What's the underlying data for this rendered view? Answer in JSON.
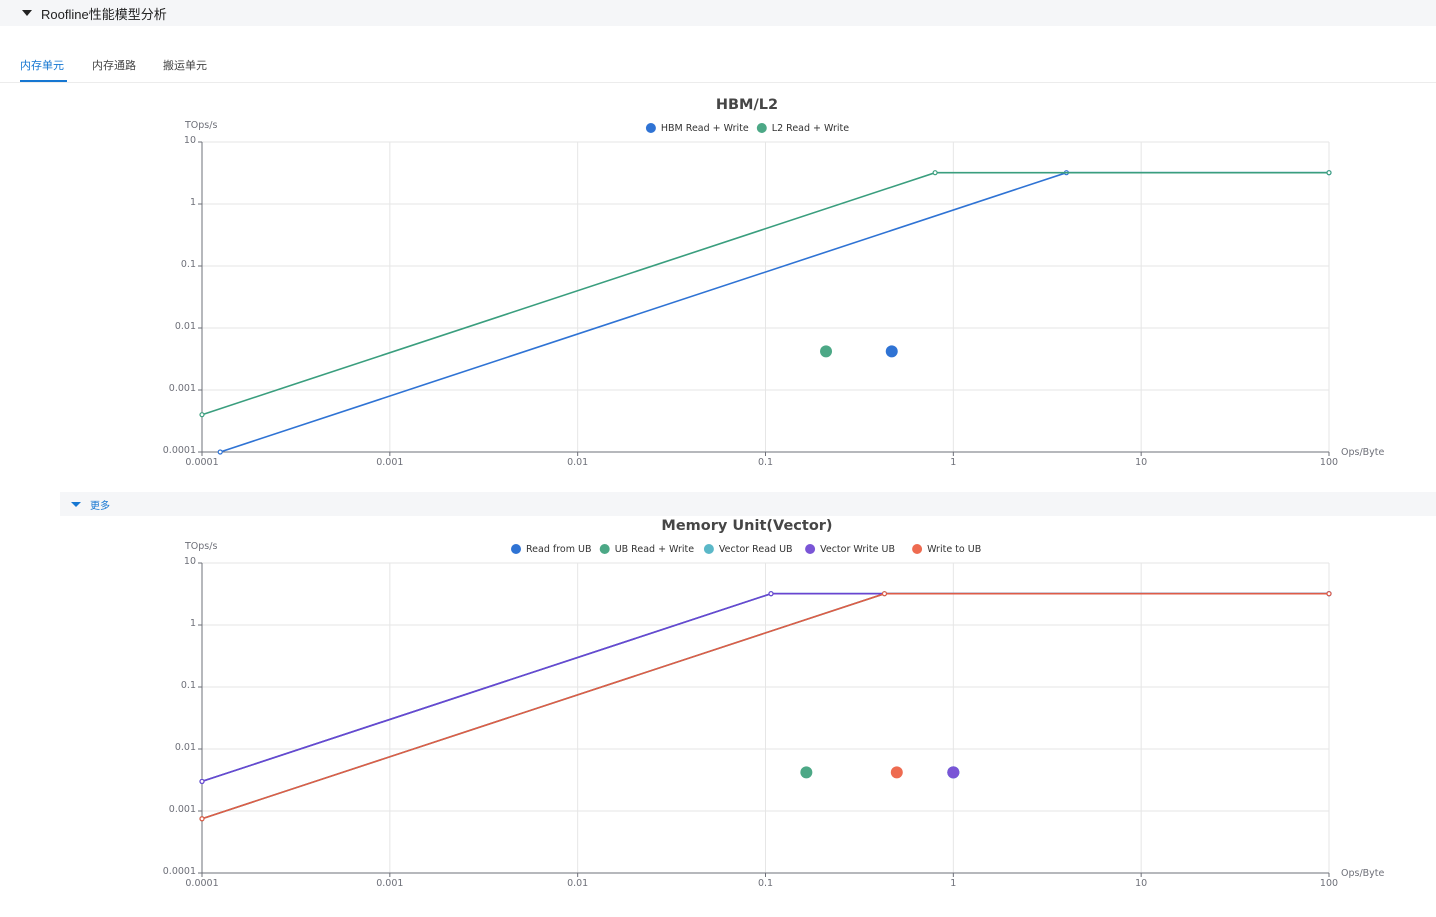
{
  "section": {
    "title": "Roofline性能模型分析"
  },
  "tabs": [
    {
      "label": "内存单元",
      "active": true
    },
    {
      "label": "内存通路",
      "active": false
    },
    {
      "label": "搬运单元",
      "active": false
    }
  ],
  "more": {
    "label": "更多"
  },
  "chart_data": [
    {
      "type": "line",
      "title": "HBM/L2",
      "xlabel": "Ops/Byte",
      "ylabel": "TOps/s",
      "xscale": "log",
      "yscale": "log",
      "xlim": [
        0.0001,
        100
      ],
      "ylim": [
        0.0001,
        10
      ],
      "x_tick_labels": [
        "0.0001",
        "0.001",
        "0.01",
        "0.1",
        "1",
        "10",
        "100"
      ],
      "y_tick_labels": [
        "0.0001",
        "0.001",
        "0.01",
        "0.1",
        "1",
        "10"
      ],
      "grid": true,
      "legend_position": "top-center",
      "series": [
        {
          "name": "HBM Read + Write",
          "color": "#2f73d4",
          "line_color": "#2f73d4",
          "roofline": [
            [
              0.000125,
              0.0001
            ],
            [
              4,
              3.2
            ],
            [
              100,
              3.2
            ]
          ],
          "points": [
            [
              0.47,
              0.0042
            ]
          ]
        },
        {
          "name": "L2 Read + Write",
          "color": "#4ca886",
          "line_color": "#3a9e7e",
          "roofline": [
            [
              0.0001,
              0.0004
            ],
            [
              0.8,
              3.2
            ],
            [
              100,
              3.2
            ]
          ],
          "points": [
            [
              0.21,
              0.0042
            ]
          ]
        }
      ]
    },
    {
      "type": "line",
      "title": "Memory Unit(Vector)",
      "xlabel": "Ops/Byte",
      "ylabel": "TOps/s",
      "xscale": "log",
      "yscale": "log",
      "xlim": [
        0.0001,
        100
      ],
      "ylim": [
        0.0001,
        10
      ],
      "x_tick_labels": [
        "0.0001",
        "0.001",
        "0.01",
        "0.1",
        "1",
        "10",
        "100"
      ],
      "y_tick_labels": [
        "0.0001",
        "0.001",
        "0.01",
        "0.1",
        "1",
        "10"
      ],
      "grid": true,
      "legend_position": "top-center",
      "series": [
        {
          "name": "Read from UB",
          "color": "#2f73d4",
          "line_color": "#2f73d4",
          "roofline": [
            [
              0.0001,
              0.003
            ],
            [
              0.107,
              3.2
            ],
            [
              100,
              3.2
            ]
          ],
          "points": [
            [
              1,
              0.0042
            ]
          ]
        },
        {
          "name": "UB Read + Write",
          "color": "#4ca886",
          "line_color": "#3a9e7e",
          "roofline": [
            [
              0.0001,
              0.00075
            ],
            [
              0.43,
              3.2
            ],
            [
              100,
              3.2
            ]
          ],
          "points": [
            [
              0.165,
              0.0042
            ]
          ]
        },
        {
          "name": "Vector Read UB",
          "color": "#5bb8c8",
          "line_color": "#5bb8c8",
          "roofline": [
            [
              0.0001,
              0.003
            ],
            [
              0.107,
              3.2
            ],
            [
              100,
              3.2
            ]
          ],
          "points": [
            [
              1,
              0.0042
            ]
          ]
        },
        {
          "name": "Vector Write UB",
          "color": "#7a55d6",
          "line_color": "#6a45d0",
          "roofline": [
            [
              0.0001,
              0.003
            ],
            [
              0.107,
              3.2
            ],
            [
              100,
              3.2
            ]
          ],
          "points": [
            [
              1,
              0.0042
            ]
          ]
        },
        {
          "name": "Write to UB",
          "color": "#ee6b50",
          "line_color": "#de5c48",
          "roofline": [
            [
              0.0001,
              0.00075
            ],
            [
              0.43,
              3.2
            ],
            [
              100,
              3.2
            ]
          ],
          "points": [
            [
              0.5,
              0.0042
            ]
          ]
        }
      ]
    }
  ]
}
